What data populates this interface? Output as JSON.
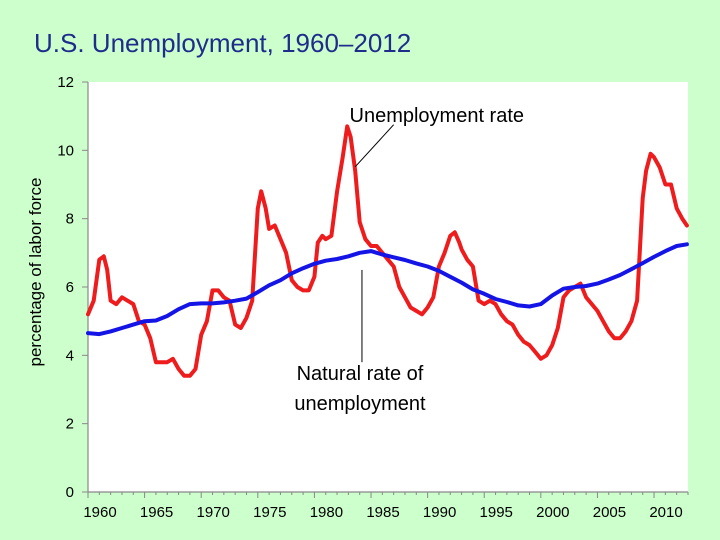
{
  "slide": {
    "title": "U.S. Unemployment, 1960–2012"
  },
  "chart_data": {
    "type": "line",
    "title": "U.S. Unemployment, 1960–2012",
    "xlabel": "",
    "ylabel": "percentage of labor force",
    "xlim": [
      1960,
      2013
    ],
    "ylim": [
      0,
      12
    ],
    "x_ticks": [
      "1960",
      "1965",
      "1970",
      "1975",
      "1980",
      "1985",
      "1990",
      "1995",
      "2000",
      "2005",
      "2010"
    ],
    "y_ticks": [
      "0",
      "2",
      "4",
      "6",
      "8",
      "10",
      "12"
    ],
    "grid": false,
    "background": "#ffffff",
    "annotations": [
      {
        "text_lines": [
          "Unemployment rate"
        ],
        "series": "Unemployment rate"
      },
      {
        "text_lines": [
          "Natural rate of",
          "unemployment"
        ],
        "series": "Natural rate of unemployment"
      }
    ],
    "series": [
      {
        "name": "Unemployment rate",
        "color": "#ee1c1c",
        "x": [
          1960.0,
          1960.5,
          1961.0,
          1961.4,
          1961.7,
          1962.0,
          1962.5,
          1963.0,
          1963.5,
          1964.0,
          1964.5,
          1965.0,
          1965.5,
          1966.0,
          1966.5,
          1967.0,
          1967.5,
          1968.0,
          1968.5,
          1969.0,
          1969.5,
          1970.0,
          1970.5,
          1971.0,
          1971.5,
          1972.0,
          1972.5,
          1973.0,
          1973.5,
          1974.0,
          1974.5,
          1975.0,
          1975.3,
          1975.7,
          1976.0,
          1976.5,
          1977.0,
          1977.5,
          1978.0,
          1978.5,
          1979.0,
          1979.5,
          1980.0,
          1980.3,
          1980.7,
          1981.0,
          1981.5,
          1982.0,
          1982.5,
          1982.9,
          1983.2,
          1983.6,
          1984.0,
          1984.5,
          1985.0,
          1985.5,
          1986.0,
          1986.5,
          1987.0,
          1987.5,
          1988.0,
          1988.5,
          1989.0,
          1989.5,
          1990.0,
          1990.5,
          1991.0,
          1991.5,
          1992.0,
          1992.4,
          1992.8,
          1993.0,
          1993.5,
          1994.0,
          1994.5,
          1995.0,
          1995.5,
          1996.0,
          1996.5,
          1997.0,
          1997.5,
          1998.0,
          1998.5,
          1999.0,
          1999.5,
          2000.0,
          2000.5,
          2001.0,
          2001.5,
          2002.0,
          2002.5,
          2003.0,
          2003.5,
          2004.0,
          2004.5,
          2005.0,
          2005.5,
          2006.0,
          2006.5,
          2007.0,
          2007.5,
          2008.0,
          2008.5,
          2009.0,
          2009.3,
          2009.7,
          2010.0,
          2010.5,
          2011.0,
          2011.5,
          2012.0,
          2012.5,
          2012.9
        ],
        "y": [
          5.2,
          5.6,
          6.8,
          6.9,
          6.5,
          5.6,
          5.5,
          5.7,
          5.6,
          5.5,
          5.0,
          4.9,
          4.5,
          3.8,
          3.8,
          3.8,
          3.9,
          3.6,
          3.4,
          3.4,
          3.6,
          4.6,
          5.0,
          5.9,
          5.9,
          5.7,
          5.6,
          4.9,
          4.8,
          5.1,
          5.6,
          8.3,
          8.8,
          8.3,
          7.7,
          7.8,
          7.4,
          7.0,
          6.2,
          6.0,
          5.9,
          5.9,
          6.3,
          7.3,
          7.5,
          7.4,
          7.5,
          8.8,
          9.8,
          10.7,
          10.4,
          9.4,
          7.9,
          7.4,
          7.2,
          7.2,
          7.0,
          6.8,
          6.6,
          6.0,
          5.7,
          5.4,
          5.3,
          5.2,
          5.4,
          5.7,
          6.6,
          7.0,
          7.5,
          7.6,
          7.3,
          7.1,
          6.8,
          6.6,
          5.6,
          5.5,
          5.6,
          5.5,
          5.2,
          5.0,
          4.9,
          4.6,
          4.4,
          4.3,
          4.1,
          3.9,
          4.0,
          4.3,
          4.8,
          5.7,
          5.9,
          6.0,
          6.1,
          5.7,
          5.5,
          5.3,
          5.0,
          4.7,
          4.5,
          4.5,
          4.7,
          5.0,
          5.6,
          8.6,
          9.4,
          9.9,
          9.8,
          9.5,
          9.0,
          9.0,
          8.3,
          8.0,
          7.8
        ]
      },
      {
        "name": "Natural rate of unemployment",
        "color": "#1414e6",
        "x": [
          1960,
          1961,
          1962,
          1963,
          1964,
          1965,
          1966,
          1967,
          1968,
          1969,
          1970,
          1971,
          1972,
          1973,
          1974,
          1975,
          1976,
          1977,
          1978,
          1979,
          1980,
          1981,
          1982,
          1983,
          1984,
          1985,
          1986,
          1987,
          1988,
          1989,
          1990,
          1991,
          1992,
          1993,
          1994,
          1995,
          1996,
          1997,
          1998,
          1999,
          2000,
          2001,
          2002,
          2003,
          2004,
          2005,
          2006,
          2007,
          2008,
          2009,
          2010,
          2011,
          2012,
          2012.9
        ],
        "y": [
          4.65,
          4.62,
          4.7,
          4.8,
          4.9,
          5.0,
          5.02,
          5.15,
          5.35,
          5.5,
          5.52,
          5.52,
          5.55,
          5.6,
          5.66,
          5.85,
          6.05,
          6.2,
          6.4,
          6.55,
          6.68,
          6.77,
          6.82,
          6.9,
          7.0,
          7.05,
          6.95,
          6.87,
          6.79,
          6.69,
          6.6,
          6.47,
          6.3,
          6.13,
          5.93,
          5.8,
          5.65,
          5.56,
          5.46,
          5.43,
          5.5,
          5.75,
          5.95,
          6.0,
          6.03,
          6.1,
          6.22,
          6.35,
          6.52,
          6.7,
          6.88,
          7.05,
          7.2,
          7.25
        ]
      }
    ]
  }
}
